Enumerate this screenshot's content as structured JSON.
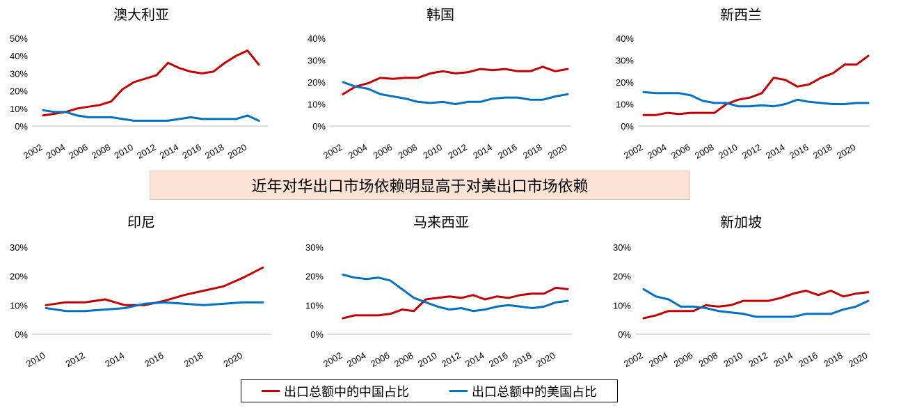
{
  "banner": {
    "text": "近年对华出口市场依赖明显高于对美出口市场依赖"
  },
  "legend": {
    "items": [
      {
        "label": "出口总额中的中国占比",
        "color": "#c00000"
      },
      {
        "label": "出口总额中的美国占比",
        "color": "#0070c0"
      }
    ]
  },
  "chart_data": [
    {
      "type": "line",
      "title": "澳大利亚",
      "xlabel": "",
      "ylabel": "",
      "ylim": [
        0,
        50
      ],
      "yticks": [
        "0%",
        "10%",
        "20%",
        "30%",
        "40%",
        "50%"
      ],
      "xticks": [
        "2002",
        "2004",
        "2006",
        "2008",
        "2010",
        "2012",
        "2014",
        "2016",
        "2018",
        "2020"
      ],
      "x": [
        2002,
        2003,
        2004,
        2005,
        2006,
        2007,
        2008,
        2009,
        2010,
        2011,
        2012,
        2013,
        2014,
        2015,
        2016,
        2017,
        2018,
        2019,
        2020,
        2021
      ],
      "series": [
        {
          "name": "出口总额中的中国占比",
          "color": "#c00000",
          "values": [
            6,
            7,
            8,
            10,
            11,
            12,
            14,
            21,
            25,
            27,
            29,
            36,
            33,
            31,
            30,
            31,
            36,
            40,
            43,
            35
          ]
        },
        {
          "name": "出口总额中的美国占比",
          "color": "#0070c0",
          "values": [
            9,
            8,
            8,
            6,
            5,
            5,
            5,
            4,
            3,
            3,
            3,
            3,
            4,
            5,
            4,
            4,
            4,
            4,
            6,
            3
          ]
        }
      ]
    },
    {
      "type": "line",
      "title": "韩国",
      "xlabel": "",
      "ylabel": "",
      "ylim": [
        0,
        40
      ],
      "yticks": [
        "0%",
        "10%",
        "20%",
        "30%",
        "40%"
      ],
      "xticks": [
        "2002",
        "2004",
        "2006",
        "2008",
        "2010",
        "2012",
        "2014",
        "2016",
        "2018",
        "2020"
      ],
      "x": [
        2002,
        2003,
        2004,
        2005,
        2006,
        2007,
        2008,
        2009,
        2010,
        2011,
        2012,
        2013,
        2014,
        2015,
        2016,
        2017,
        2018,
        2019,
        2020
      ],
      "series": [
        {
          "name": "出口总额中的中国占比",
          "color": "#c00000",
          "values": [
            14.5,
            18,
            19.5,
            22,
            21.5,
            22,
            22,
            24,
            25,
            24,
            24.5,
            26,
            25.5,
            26,
            25,
            25,
            27,
            25,
            26
          ]
        },
        {
          "name": "出口总额中的美国占比",
          "color": "#0070c0",
          "values": [
            20,
            18,
            17,
            14.5,
            13.5,
            12.5,
            11,
            10.5,
            11,
            10,
            11,
            11,
            12.5,
            13,
            13,
            12,
            12,
            13.5,
            14.5
          ]
        }
      ]
    },
    {
      "type": "line",
      "title": "新西兰",
      "xlabel": "",
      "ylabel": "",
      "ylim": [
        0,
        40
      ],
      "yticks": [
        "0%",
        "10%",
        "20%",
        "30%",
        "40%"
      ],
      "xticks": [
        "2002",
        "2004",
        "2006",
        "2008",
        "2010",
        "2012",
        "2014",
        "2016",
        "2018",
        "2020"
      ],
      "x": [
        2002,
        2003,
        2004,
        2005,
        2006,
        2007,
        2008,
        2009,
        2010,
        2011,
        2012,
        2013,
        2014,
        2015,
        2016,
        2017,
        2018,
        2019,
        2020,
        2021
      ],
      "series": [
        {
          "name": "出口总额中的中国占比",
          "color": "#c00000",
          "values": [
            5,
            5,
            6,
            5.5,
            6,
            6,
            6,
            10,
            12,
            13,
            15,
            22,
            21,
            18,
            19,
            22,
            24,
            28,
            28,
            32
          ]
        },
        {
          "name": "出口总额中的美国占比",
          "color": "#0070c0",
          "values": [
            15.5,
            15,
            15,
            15,
            14,
            11.5,
            10.5,
            10.5,
            9,
            9,
            9.5,
            9,
            10,
            12,
            11,
            10.5,
            10,
            10,
            10.5,
            10.5
          ]
        }
      ]
    },
    {
      "type": "line",
      "title": "印尼",
      "xlabel": "",
      "ylabel": "",
      "ylim": [
        0,
        30
      ],
      "yticks": [
        "0%",
        "10%",
        "20%",
        "30%"
      ],
      "xticks": [
        "2010",
        "2012",
        "2014",
        "2016",
        "2018",
        "2020"
      ],
      "x": [
        2010,
        2011,
        2012,
        2013,
        2014,
        2015,
        2016,
        2017,
        2018,
        2019,
        2020,
        2021
      ],
      "series": [
        {
          "name": "出口总额中的中国占比",
          "color": "#c00000",
          "values": [
            10,
            11,
            11,
            12,
            10,
            10,
            11.5,
            13.5,
            15,
            16.5,
            19.5,
            23
          ]
        },
        {
          "name": "出口总额中的美国占比",
          "color": "#0070c0",
          "values": [
            9,
            8,
            8,
            8.5,
            9,
            10.5,
            11,
            10.5,
            10,
            10.5,
            11,
            11
          ]
        }
      ]
    },
    {
      "type": "line",
      "title": "马来西亚",
      "xlabel": "",
      "ylabel": "",
      "ylim": [
        0,
        30
      ],
      "yticks": [
        "0%",
        "10%",
        "20%",
        "30%"
      ],
      "xticks": [
        "2002",
        "2004",
        "2006",
        "2008",
        "2010",
        "2012",
        "2014",
        "2016",
        "2018",
        "2020"
      ],
      "x": [
        2002,
        2003,
        2004,
        2005,
        2006,
        2007,
        2008,
        2009,
        2010,
        2011,
        2012,
        2013,
        2014,
        2015,
        2016,
        2017,
        2018,
        2019,
        2020,
        2021
      ],
      "series": [
        {
          "name": "出口总额中的中国占比",
          "color": "#c00000",
          "values": [
            5.5,
            6.5,
            6.5,
            6.5,
            7,
            8.5,
            8,
            12,
            12.5,
            13,
            12.5,
            13.5,
            12,
            13,
            12.5,
            13.5,
            14,
            14,
            16,
            15.5
          ]
        },
        {
          "name": "出口总额中的美国占比",
          "color": "#0070c0",
          "values": [
            20.5,
            19.5,
            19,
            19.5,
            18.5,
            15.5,
            12.5,
            11,
            9.5,
            8.5,
            9,
            8,
            8.5,
            9.5,
            10,
            9.5,
            9,
            9.5,
            11,
            11.5
          ]
        }
      ]
    },
    {
      "type": "line",
      "title": "新加坡",
      "xlabel": "",
      "ylabel": "",
      "ylim": [
        0,
        30
      ],
      "yticks": [
        "0%",
        "10%",
        "20%",
        "30%"
      ],
      "xticks": [
        "2002",
        "2004",
        "2006",
        "2008",
        "2010",
        "2012",
        "2014",
        "2016",
        "2018",
        "2020"
      ],
      "x": [
        2002,
        2003,
        2004,
        2005,
        2006,
        2007,
        2008,
        2009,
        2010,
        2011,
        2012,
        2013,
        2014,
        2015,
        2016,
        2017,
        2018,
        2019,
        2020
      ],
      "series": [
        {
          "name": "出口总额中的中国占比",
          "color": "#c00000",
          "values": [
            5.5,
            6.5,
            8,
            8,
            8,
            10,
            9.5,
            10,
            11.5,
            11.5,
            11.5,
            12.5,
            14,
            15,
            13.5,
            15,
            13,
            14,
            14.5
          ]
        },
        {
          "name": "出口总额中的美国占比",
          "color": "#0070c0",
          "values": [
            15.5,
            13,
            12,
            9.5,
            9.5,
            9,
            8,
            7.5,
            7,
            6,
            6,
            6,
            6,
            7,
            7,
            7,
            8.5,
            9.5,
            11.5
          ]
        }
      ]
    }
  ]
}
